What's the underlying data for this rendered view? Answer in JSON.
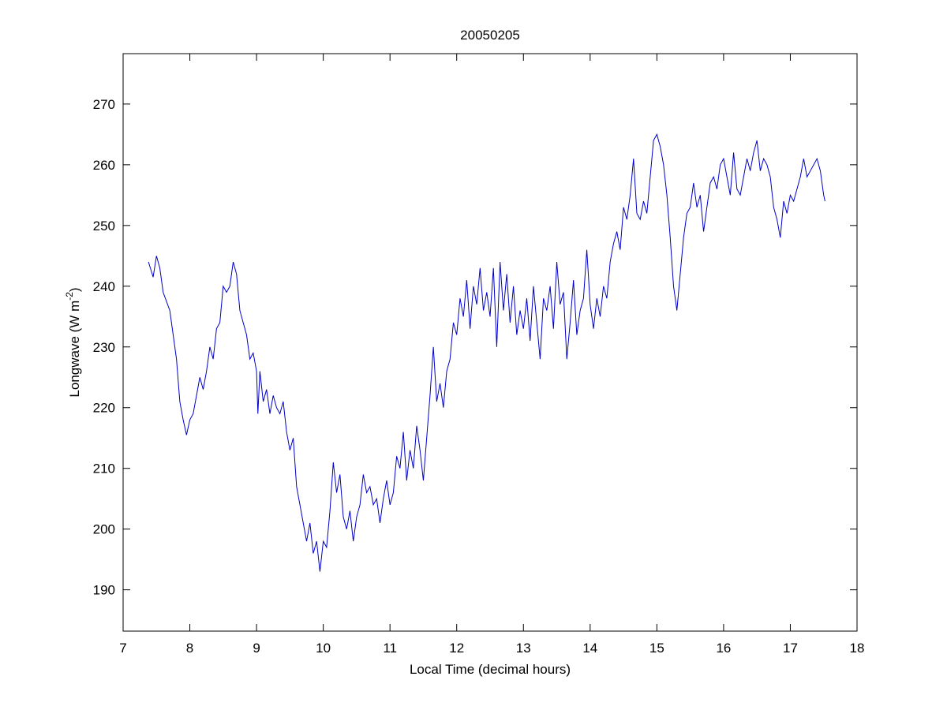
{
  "chart_data": {
    "type": "line",
    "title": "20050205",
    "x_label": "Local Time (decimal hours)",
    "y_label": {
      "text": "Longwave (W m",
      "superscript": "-2",
      "suffix": ")"
    },
    "xlim": [
      7,
      18
    ],
    "xticks": [
      7,
      8,
      9,
      10,
      11,
      12,
      13,
      14,
      15,
      16,
      17,
      18
    ],
    "ylim": [
      183.2,
      278.3
    ],
    "yticks": [
      190,
      200,
      210,
      220,
      230,
      240,
      250,
      260,
      270
    ],
    "grid": false,
    "series": [
      {
        "color": "#0000c8",
        "x": [
          7.38,
          7.45,
          7.5,
          7.55,
          7.6,
          7.7,
          7.75,
          7.8,
          7.85,
          7.9,
          7.95,
          8.0,
          8.05,
          8.1,
          8.15,
          8.2,
          8.25,
          8.3,
          8.35,
          8.4,
          8.45,
          8.5,
          8.55,
          8.6,
          8.65,
          8.7,
          8.75,
          8.8,
          8.85,
          8.9,
          8.95,
          9.0,
          9.02,
          9.05,
          9.1,
          9.15,
          9.2,
          9.25,
          9.3,
          9.35,
          9.4,
          9.45,
          9.5,
          9.55,
          9.6,
          9.65,
          9.7,
          9.75,
          9.8,
          9.85,
          9.9,
          9.95,
          10.0,
          10.05,
          10.1,
          10.15,
          10.2,
          10.25,
          10.3,
          10.35,
          10.4,
          10.45,
          10.5,
          10.55,
          10.6,
          10.65,
          10.7,
          10.75,
          10.8,
          10.85,
          10.9,
          10.95,
          11.0,
          11.05,
          11.1,
          11.15,
          11.2,
          11.25,
          11.3,
          11.35,
          11.4,
          11.45,
          11.5,
          11.55,
          11.6,
          11.65,
          11.7,
          11.75,
          11.8,
          11.85,
          11.9,
          11.95,
          12.0,
          12.05,
          12.1,
          12.15,
          12.2,
          12.25,
          12.3,
          12.35,
          12.4,
          12.45,
          12.5,
          12.55,
          12.6,
          12.65,
          12.7,
          12.75,
          12.8,
          12.85,
          12.9,
          12.95,
          13.0,
          13.05,
          13.1,
          13.15,
          13.2,
          13.25,
          13.3,
          13.35,
          13.4,
          13.45,
          13.5,
          13.55,
          13.6,
          13.65,
          13.7,
          13.75,
          13.8,
          13.85,
          13.9,
          13.95,
          14.0,
          14.05,
          14.1,
          14.15,
          14.2,
          14.25,
          14.3,
          14.35,
          14.4,
          14.45,
          14.5,
          14.55,
          14.6,
          14.65,
          14.7,
          14.75,
          14.8,
          14.85,
          14.9,
          14.95,
          15.0,
          15.05,
          15.1,
          15.15,
          15.2,
          15.25,
          15.3,
          15.35,
          15.4,
          15.45,
          15.5,
          15.55,
          15.6,
          15.65,
          15.7,
          15.75,
          15.8,
          15.85,
          15.9,
          15.95,
          16.0,
          16.05,
          16.1,
          16.15,
          16.2,
          16.25,
          16.3,
          16.35,
          16.4,
          16.45,
          16.5,
          16.55,
          16.6,
          16.65,
          16.7,
          16.75,
          16.8,
          16.85,
          16.9,
          16.95,
          17.0,
          17.05,
          17.1,
          17.15,
          17.2,
          17.25,
          17.3,
          17.35,
          17.4,
          17.45,
          17.5,
          17.52
        ],
        "values": [
          244,
          241.5,
          245,
          243,
          239,
          236,
          232,
          228,
          221,
          218,
          215.5,
          218,
          219,
          222,
          225,
          223,
          226,
          230,
          228,
          233,
          234,
          240,
          239,
          240,
          244,
          242,
          236,
          234,
          232,
          228,
          229,
          226,
          219,
          226,
          221,
          223,
          219,
          222,
          220,
          219,
          221,
          216,
          213,
          215,
          207,
          204,
          201,
          198,
          201,
          196,
          198,
          193,
          198,
          197,
          203,
          211,
          206,
          209,
          202,
          200,
          203,
          198,
          202,
          204,
          209,
          206,
          207,
          204,
          205,
          201,
          205,
          208,
          204,
          206,
          212,
          210,
          216,
          208,
          213,
          210,
          217,
          213,
          208,
          215,
          222,
          230,
          221,
          224,
          220,
          226,
          228,
          234,
          232,
          238,
          235,
          241,
          233,
          240,
          237,
          243,
          236,
          239,
          235,
          243,
          230,
          244,
          236,
          242,
          234,
          240,
          232,
          236,
          233,
          238,
          231,
          240,
          234,
          228,
          238,
          236,
          240,
          233,
          244,
          237,
          239,
          228,
          234,
          241,
          232,
          236,
          238,
          246,
          237,
          233,
          238,
          235,
          240,
          238,
          244,
          247,
          249,
          246,
          253,
          251,
          255,
          261,
          252,
          251,
          254,
          252,
          258,
          264,
          265,
          263,
          260,
          255,
          248,
          240,
          236,
          242,
          248,
          252,
          253,
          257,
          253,
          255,
          249,
          253,
          257,
          258,
          256,
          260,
          261,
          258,
          255,
          262,
          256,
          255,
          258,
          261,
          259,
          262,
          264,
          259,
          261,
          260,
          258,
          253,
          251,
          248,
          254,
          252,
          255,
          254,
          256,
          258,
          261,
          258,
          259,
          260,
          261,
          259,
          255,
          254
        ]
      }
    ]
  }
}
